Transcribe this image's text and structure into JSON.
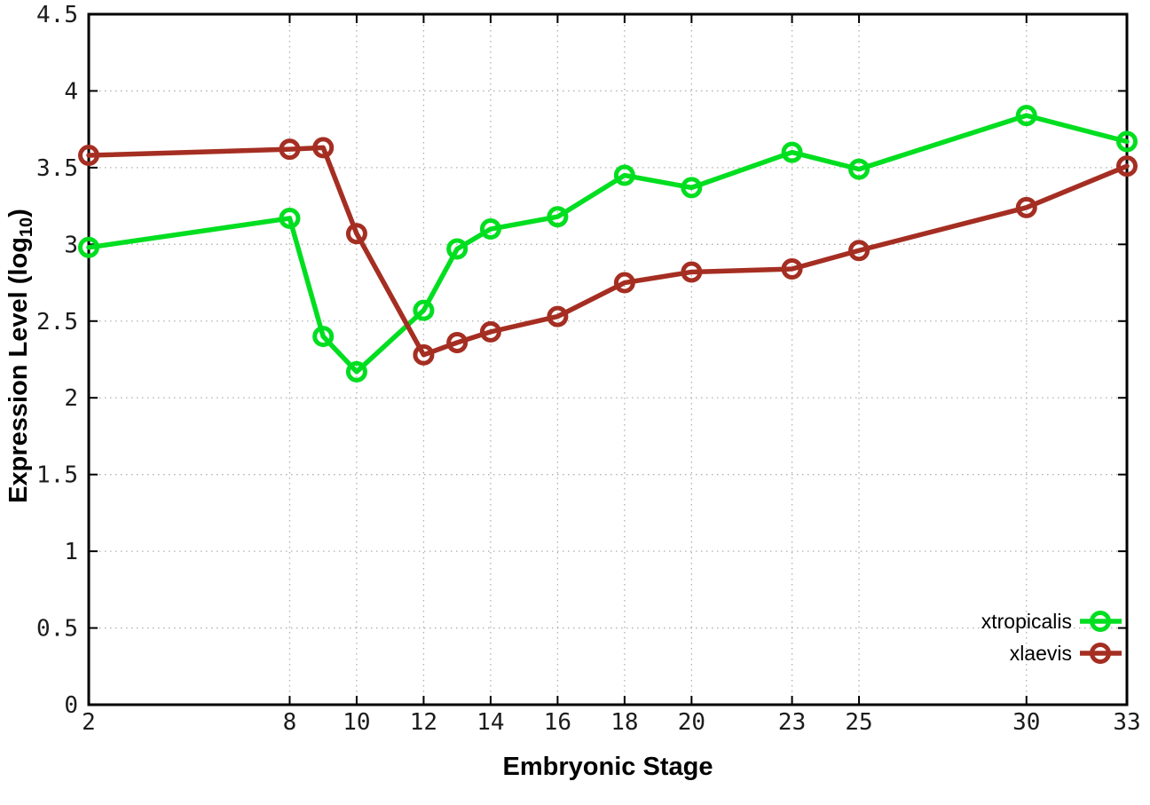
{
  "chart_data": {
    "type": "line",
    "title": "",
    "xlabel": "Embryonic Stage",
    "ylabel": {
      "text": "Expression Level (log",
      "subscript": "10",
      "suffix": ")"
    },
    "xlim": [
      2,
      33
    ],
    "ylim": [
      0,
      4.5
    ],
    "xticks": [
      {
        "value": 2,
        "label": "2"
      },
      {
        "value": 8,
        "label": "8"
      },
      {
        "value": 10,
        "label": "10"
      },
      {
        "value": 12,
        "label": "12"
      },
      {
        "value": 14,
        "label": "14"
      },
      {
        "value": 16,
        "label": "16"
      },
      {
        "value": 18,
        "label": "18"
      },
      {
        "value": 20,
        "label": "20"
      },
      {
        "value": 23,
        "label": "23"
      },
      {
        "value": 25,
        "label": "25"
      },
      {
        "value": 30,
        "label": "30"
      },
      {
        "value": 33,
        "label": "33"
      }
    ],
    "yticks": [
      {
        "value": 0,
        "label": "0"
      },
      {
        "value": 0.5,
        "label": "0.5"
      },
      {
        "value": 1,
        "label": "1"
      },
      {
        "value": 1.5,
        "label": "1.5"
      },
      {
        "value": 2,
        "label": "2"
      },
      {
        "value": 2.5,
        "label": "2.5"
      },
      {
        "value": 3,
        "label": "3"
      },
      {
        "value": 3.5,
        "label": "3.5"
      },
      {
        "value": 4,
        "label": "4"
      },
      {
        "value": 4.5,
        "label": "4.5"
      }
    ],
    "grid": "dotted",
    "legend_position": "bottom-right-inside",
    "x": [
      2,
      8,
      9,
      10,
      12,
      13,
      14,
      16,
      18,
      20,
      23,
      25,
      30,
      33
    ],
    "series": [
      {
        "name": "xtropicalis",
        "color": "#00de20",
        "marker": "open-circle",
        "values": [
          2.98,
          3.17,
          2.4,
          2.17,
          2.57,
          2.97,
          3.1,
          3.18,
          3.45,
          3.37,
          3.6,
          3.49,
          3.84,
          3.67
        ]
      },
      {
        "name": "xlaevis",
        "color": "#a52e22",
        "marker": "open-circle",
        "values": [
          3.58,
          3.62,
          3.63,
          3.07,
          2.28,
          2.36,
          2.43,
          2.53,
          2.75,
          2.82,
          2.84,
          2.96,
          3.24,
          3.51
        ]
      }
    ]
  },
  "colors": {
    "background": "#ffffff",
    "plot_border": "#000000",
    "grid": "#b0b0b0",
    "tick_text": "#1c1c1c"
  }
}
